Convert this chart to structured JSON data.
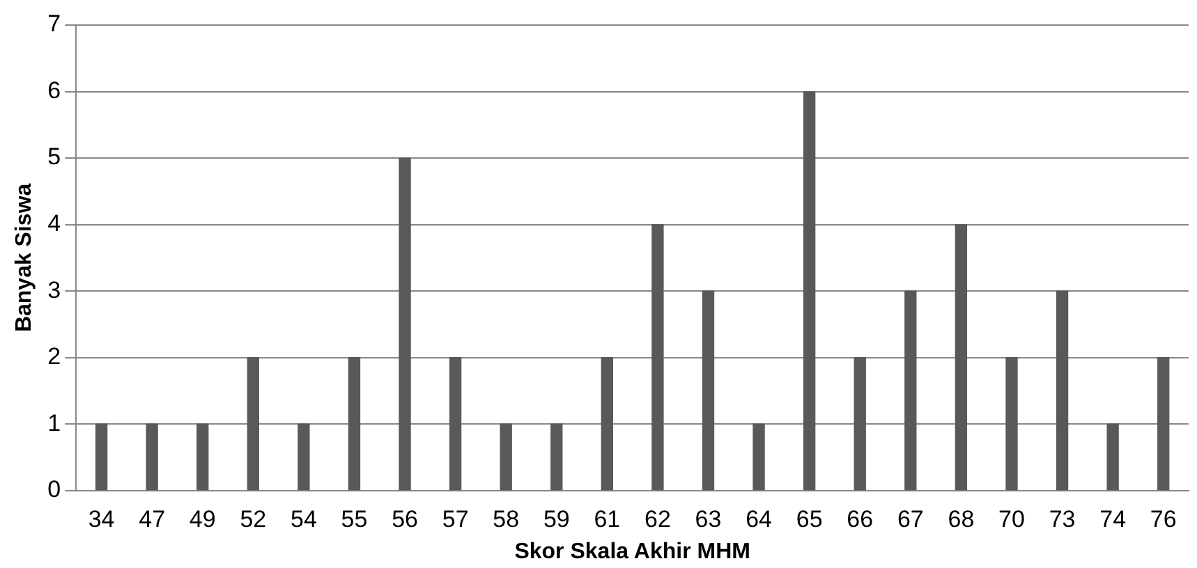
{
  "chart_data": {
    "type": "bar",
    "xlabel": "Skor Skala Akhir MHM",
    "ylabel": "Banyak Siswa",
    "categories": [
      "34",
      "47",
      "49",
      "52",
      "54",
      "55",
      "56",
      "57",
      "58",
      "59",
      "61",
      "62",
      "63",
      "64",
      "65",
      "66",
      "67",
      "68",
      "70",
      "73",
      "74",
      "76"
    ],
    "values": [
      1,
      1,
      1,
      2,
      1,
      2,
      5,
      2,
      1,
      1,
      2,
      4,
      3,
      1,
      6,
      2,
      3,
      4,
      2,
      3,
      1,
      2
    ],
    "color": "#595959",
    "ylim": [
      0,
      7
    ],
    "yticks": [
      0,
      1,
      2,
      3,
      4,
      5,
      6,
      7
    ],
    "grid": "y",
    "legend": false
  }
}
